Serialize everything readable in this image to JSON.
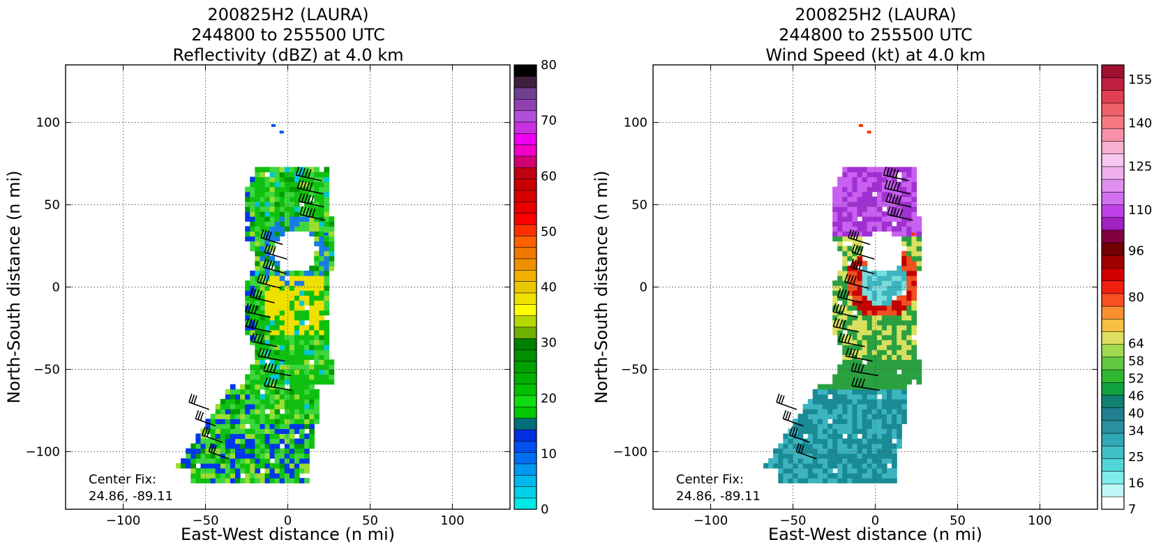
{
  "chart_data": [
    {
      "type": "heatmap",
      "title_lines": [
        "200825H2 (LAURA)",
        "244800 to 255500 UTC",
        "Reflectivity (dBZ) at 4.0 km"
      ],
      "xlabel": "East-West distance (n mi)",
      "ylabel": "North-South distance (n mi)",
      "xlim": [
        -135,
        135
      ],
      "ylim": [
        -135,
        135
      ],
      "xticks": [
        -100,
        -50,
        0,
        50,
        100
      ],
      "yticks": [
        -100,
        -50,
        0,
        50,
        100
      ],
      "xtick_labels": [
        "−100",
        "−50",
        "0",
        "50",
        "100"
      ],
      "ytick_labels": [
        "−100",
        "−50",
        "0",
        "50",
        "100"
      ],
      "grid": true,
      "annotation_lines": [
        "Center Fix:",
        "24.86, -89.11"
      ],
      "colorbar": {
        "min": 0,
        "max": 80,
        "ticks": [
          0,
          10,
          20,
          30,
          40,
          50,
          60,
          70,
          80
        ],
        "tick_labels": [
          "0",
          "10",
          "20",
          "30",
          "40",
          "50",
          "60",
          "70",
          "80"
        ],
        "colors": [
          "#00e8e8",
          "#00d0e8",
          "#00b8f0",
          "#0098f0",
          "#0070f0",
          "#0050f0",
          "#0030e0",
          "#006f7a",
          "#00c800",
          "#10dc10",
          "#00c000",
          "#00b000",
          "#00a000",
          "#009000",
          "#008000",
          "#70b000",
          "#b4d800",
          "#ffff00",
          "#f0e000",
          "#e8c800",
          "#f0b000",
          "#f09000",
          "#f07800",
          "#ff6000",
          "#ff3000",
          "#ff0000",
          "#e80000",
          "#d80000",
          "#c80000",
          "#c00010",
          "#d00070",
          "#f000c8",
          "#f000f0",
          "#c830e0",
          "#b050d8",
          "#9040b0",
          "#704090",
          "#402040",
          "#000000"
        ]
      },
      "field_colors": [
        "#0038e8",
        "#1a7ae8",
        "#00c8d8",
        "#10c010",
        "#3dd63d",
        "#9cdc30",
        "#f0e000",
        "#009a00"
      ],
      "barb_color": "#000000"
    },
    {
      "type": "heatmap",
      "title_lines": [
        "200825H2 (LAURA)",
        "244800 to 255500 UTC",
        "Wind Speed (kt) at 4.0 km"
      ],
      "xlabel": "East-West distance (n mi)",
      "ylabel": "North-South distance (n mi)",
      "xlim": [
        -135,
        135
      ],
      "ylim": [
        -135,
        135
      ],
      "xticks": [
        -100,
        -50,
        0,
        50,
        100
      ],
      "yticks": [
        -100,
        -50,
        0,
        50,
        100
      ],
      "xtick_labels": [
        "−100",
        "−50",
        "0",
        "50",
        "100"
      ],
      "ytick_labels": [
        "−100",
        "−50",
        "0",
        "50",
        "100"
      ],
      "grid": true,
      "annotation_lines": [
        "Center Fix:",
        "24.86, -89.11"
      ],
      "colorbar": {
        "min": 7,
        "max": 160,
        "ticks": [
          7,
          16,
          25,
          34,
          40,
          46,
          52,
          58,
          64,
          80,
          96,
          110,
          125,
          140,
          155
        ],
        "tick_labels": [
          "7",
          "16",
          "25",
          "34",
          "40",
          "46",
          "52",
          "58",
          "64",
          "80",
          "96",
          "110",
          "125",
          "140",
          "155"
        ],
        "colors": [
          "#ffffff",
          "#c0f8f8",
          "#80ecec",
          "#50d8d8",
          "#40c0c8",
          "#30a8b8",
          "#2890a0",
          "#208090",
          "#108070",
          "#10a040",
          "#30b830",
          "#60c840",
          "#a0d850",
          "#e0e060",
          "#f8c040",
          "#f89030",
          "#f85020",
          "#f02010",
          "#d00000",
          "#a00000",
          "#700000",
          "#800040",
          "#a020c0",
          "#c040e8",
          "#d070f0",
          "#e090f0",
          "#f0b0f0",
          "#f8c8f0",
          "#f8b0d0",
          "#f890a8",
          "#f87880",
          "#f06068",
          "#e04050",
          "#c02040",
          "#a01030"
        ]
      },
      "field_colors": [
        "#1a8a95",
        "#3cb5c0",
        "#7adcdc",
        "#2aa040",
        "#d8e060",
        "#f05020",
        "#c40000",
        "#a030d0",
        "#c860f0",
        "#e0a0f0"
      ],
      "barb_color": "#000000"
    }
  ]
}
